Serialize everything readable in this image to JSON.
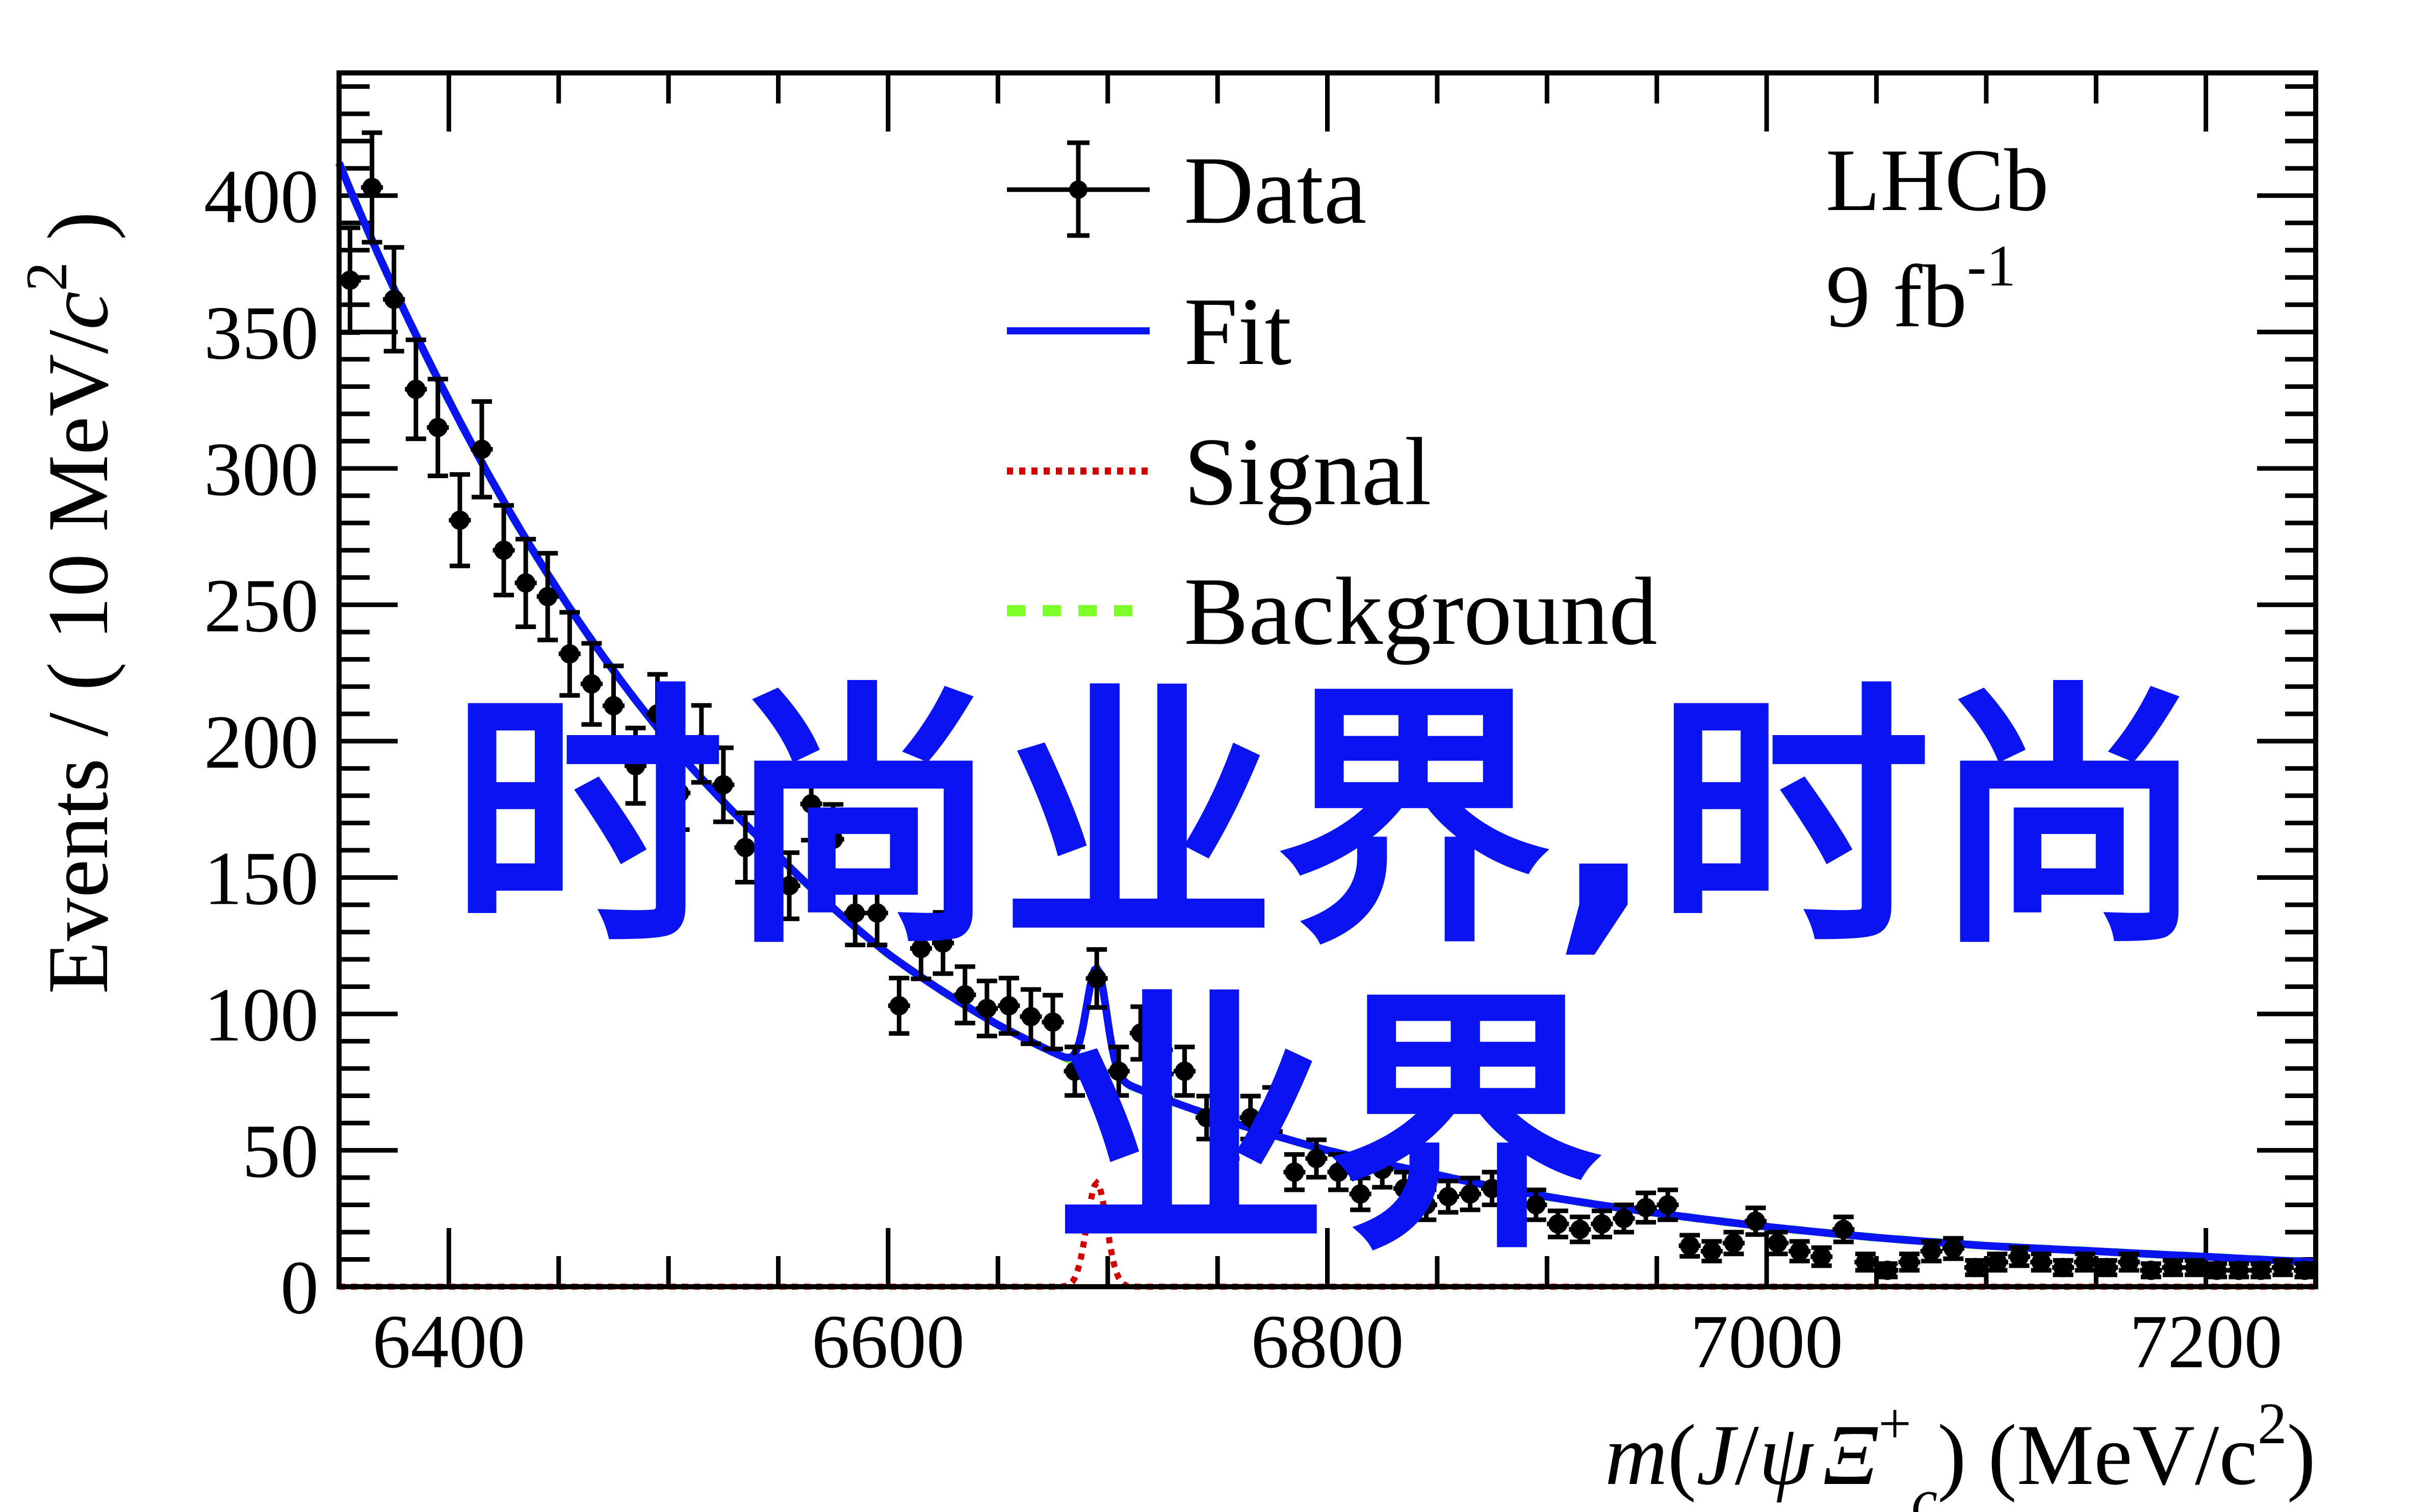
{
  "chart_data": {
    "type": "scatter",
    "title": "",
    "xlabel": "m(J/ψ Ξc+) (MeV/c²)",
    "xlabel_parts": {
      "m": "m",
      "open": "(",
      "J": "J",
      "slash": "/",
      "psi": "ψ",
      "Xi": "Ξ",
      "sub": "c",
      "sup": "+",
      "close": ")",
      "units": " (MeV/c",
      "units_sup": "2",
      "units_close": ")"
    },
    "ylabel": "Events / ( 10 MeV/c² )",
    "ylabel_parts": {
      "main": "Events / ( 10 MeV/",
      "c": "c",
      "sup": "2",
      "close": " )"
    },
    "xlim": [
      6350,
      7250
    ],
    "ylim": [
      0,
      445
    ],
    "x_ticks": [
      "6400",
      "6600",
      "6800",
      "7000",
      "7200"
    ],
    "x_tick_values": [
      6400,
      6600,
      6800,
      7000,
      7200
    ],
    "y_ticks": [
      "0",
      "50",
      "100",
      "150",
      "200",
      "250",
      "300",
      "350",
      "400"
    ],
    "y_tick_values": [
      0,
      50,
      100,
      150,
      200,
      250,
      300,
      350,
      400
    ],
    "grid": false,
    "bin_width": 10,
    "data": {
      "name": "Data",
      "x_start": 6355,
      "values": [
        369,
        403,
        362,
        329,
        315,
        281,
        307,
        270,
        258,
        253,
        232,
        221,
        213,
        191,
        210,
        181,
        199,
        184,
        161,
        164,
        147,
        177,
        164,
        137,
        137,
        103,
        124,
        126,
        107,
        102,
        103,
        99,
        97,
        79,
        113,
        79,
        93,
        78,
        79,
        62,
        47,
        62,
        65,
        42,
        47,
        42,
        34,
        43,
        36,
        30,
        33,
        34,
        36,
        22,
        30,
        23,
        21,
        23,
        25,
        29,
        30,
        15,
        13,
        16,
        24,
        16,
        13,
        11,
        21,
        9,
        6,
        9,
        13,
        14,
        7,
        9,
        11,
        9,
        7,
        9,
        7,
        9,
        6,
        7,
        7,
        6,
        6,
        6,
        7,
        6
      ]
    },
    "background_curve": {
      "name": "Background",
      "x": [
        6350,
        6400,
        6450,
        6500,
        6550,
        6600,
        6650,
        6700,
        6750,
        6800,
        6850,
        6900,
        6950,
        7000,
        7050,
        7100,
        7150,
        7200,
        7250
      ],
      "y": [
        412,
        325,
        255,
        200,
        158,
        122,
        96,
        77,
        62,
        50,
        41,
        33,
        27,
        22,
        18,
        15,
        13,
        11,
        9
      ]
    },
    "signal": {
      "name": "Signal",
      "mean": 6695,
      "sigma": 4.5,
      "amplitude": 38
    },
    "legend": {
      "placement": "top-center",
      "entries": [
        "Data",
        "Fit",
        "Signal",
        "Background"
      ]
    },
    "annotations": {
      "experiment": "LHCb",
      "lumi": "9 fb",
      "lumi_sup": "-1"
    },
    "colors": {
      "data": "#000000",
      "fit": "#0a14f0",
      "signal": "#d40000",
      "background": "#7fff2a",
      "axis": "#000000"
    }
  },
  "overlay": {
    "watermark_text": "时尚业界,时尚业界"
  }
}
